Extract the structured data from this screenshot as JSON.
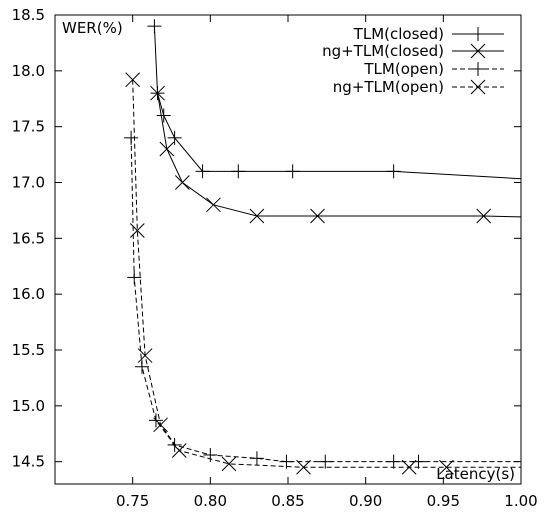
{
  "chart_data": {
    "type": "line",
    "xlabel": "Latency(s)",
    "ylabel": "WER(%)",
    "xlim": [
      0.7,
      1.0
    ],
    "ylim": [
      14.3,
      18.5
    ],
    "xticks": [
      0.75,
      0.8,
      0.85,
      0.9,
      0.95,
      1.0
    ],
    "xtick_labels": [
      "0.75",
      "0.80",
      "0.85",
      "0.90",
      "0.95",
      "1.00"
    ],
    "yticks": [
      14.5,
      15.0,
      15.5,
      16.0,
      16.5,
      17.0,
      17.5,
      18.0,
      18.5
    ],
    "ytick_labels": [
      "14.5",
      "15.0",
      "15.5",
      "16.0",
      "16.5",
      "17.0",
      "17.5",
      "18.0",
      "18.5"
    ],
    "legend_position": "top-right",
    "grid": false,
    "series": [
      {
        "name": "TLM(closed)",
        "marker": "plus",
        "dashed": false,
        "x": [
          0.764,
          0.766,
          0.77,
          0.777,
          0.795,
          0.818,
          0.853,
          0.918,
          1.005
        ],
        "y": [
          18.4,
          17.8,
          17.6,
          17.4,
          17.1,
          17.1,
          17.1,
          17.1,
          17.03
        ]
      },
      {
        "name": "ng+TLM(closed)",
        "marker": "cross",
        "dashed": false,
        "x": [
          0.766,
          0.772,
          0.782,
          0.802,
          0.83,
          0.869,
          0.976,
          1.005
        ],
        "y": [
          17.8,
          17.3,
          17.0,
          16.8,
          16.7,
          16.7,
          16.7,
          16.69
        ]
      },
      {
        "name": "TLM(open)",
        "marker": "plus",
        "dashed": true,
        "x": [
          0.749,
          0.751,
          0.756,
          0.765,
          0.777,
          0.8,
          0.83,
          0.849,
          0.874,
          0.918,
          0.934,
          1.005
        ],
        "y": [
          17.4,
          16.15,
          15.35,
          14.87,
          14.65,
          14.56,
          14.53,
          14.5,
          14.5,
          14.5,
          14.5,
          14.5
        ]
      },
      {
        "name": "ng+TLM(open)",
        "marker": "cross",
        "dashed": true,
        "x": [
          0.75,
          0.753,
          0.758,
          0.768,
          0.78,
          0.812,
          0.86,
          0.928,
          0.952,
          1.005
        ],
        "y": [
          17.92,
          16.57,
          15.45,
          14.83,
          14.6,
          14.48,
          14.45,
          14.45,
          14.45,
          14.45
        ]
      }
    ]
  }
}
